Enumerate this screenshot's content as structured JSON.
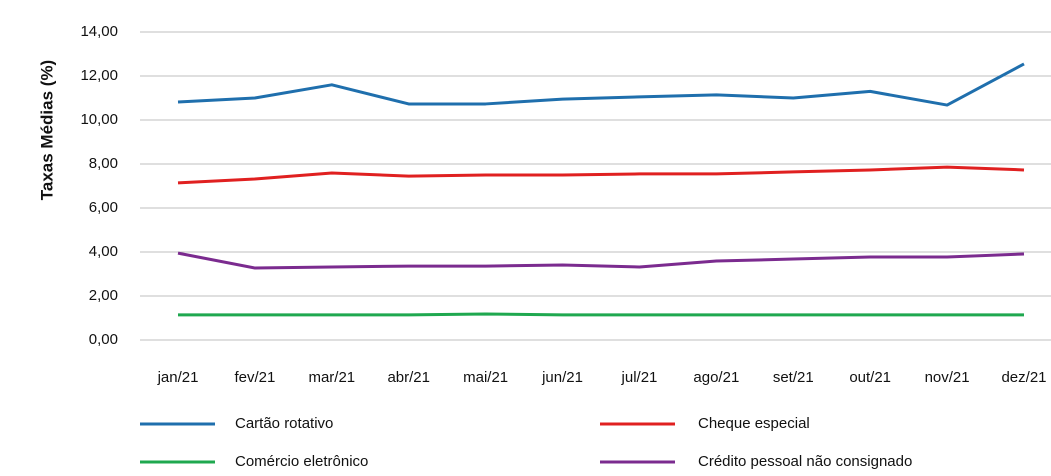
{
  "chart_data": {
    "type": "line",
    "y_label": "Taxas Médias (%)",
    "categories": [
      "jan/21",
      "fev/21",
      "mar/21",
      "abr/21",
      "mai/21",
      "jun/21",
      "jul/21",
      "ago/21",
      "set/21",
      "out/21",
      "nov/21",
      "dez/21"
    ],
    "series": [
      {
        "name": "Cartão rotativo",
        "color": "#1f6fad",
        "values": [
          10.82,
          11.0,
          11.6,
          10.73,
          10.73,
          10.95,
          11.05,
          11.14,
          11.0,
          11.3,
          10.68,
          12.55
        ]
      },
      {
        "name": "Cheque especial",
        "color": "#e02020",
        "values": [
          7.14,
          7.32,
          7.59,
          7.45,
          7.5,
          7.5,
          7.55,
          7.55,
          7.64,
          7.73,
          7.86,
          7.73
        ]
      },
      {
        "name": "Comércio eletrônico",
        "color": "#1fa84f",
        "values": [
          1.14,
          1.14,
          1.14,
          1.14,
          1.18,
          1.14,
          1.14,
          1.14,
          1.14,
          1.14,
          1.14,
          1.14
        ]
      },
      {
        "name": "Crédito pessoal não consignado",
        "color": "#7b2b8f",
        "values": [
          3.95,
          3.27,
          3.32,
          3.36,
          3.36,
          3.41,
          3.32,
          3.59,
          3.68,
          3.77,
          3.77,
          3.91
        ]
      }
    ],
    "ylim": [
      0,
      14
    ],
    "yticks": [
      {
        "value": 0,
        "label": "0,00"
      },
      {
        "value": 2,
        "label": "2,00"
      },
      {
        "value": 4,
        "label": "4,00"
      },
      {
        "value": 6,
        "label": "6,00"
      },
      {
        "value": 8,
        "label": "8,00"
      },
      {
        "value": 10,
        "label": "10,00"
      },
      {
        "value": 12,
        "label": "12,00"
      },
      {
        "value": 14,
        "label": "14,00"
      }
    ],
    "grid": true,
    "legend": "bottom"
  }
}
